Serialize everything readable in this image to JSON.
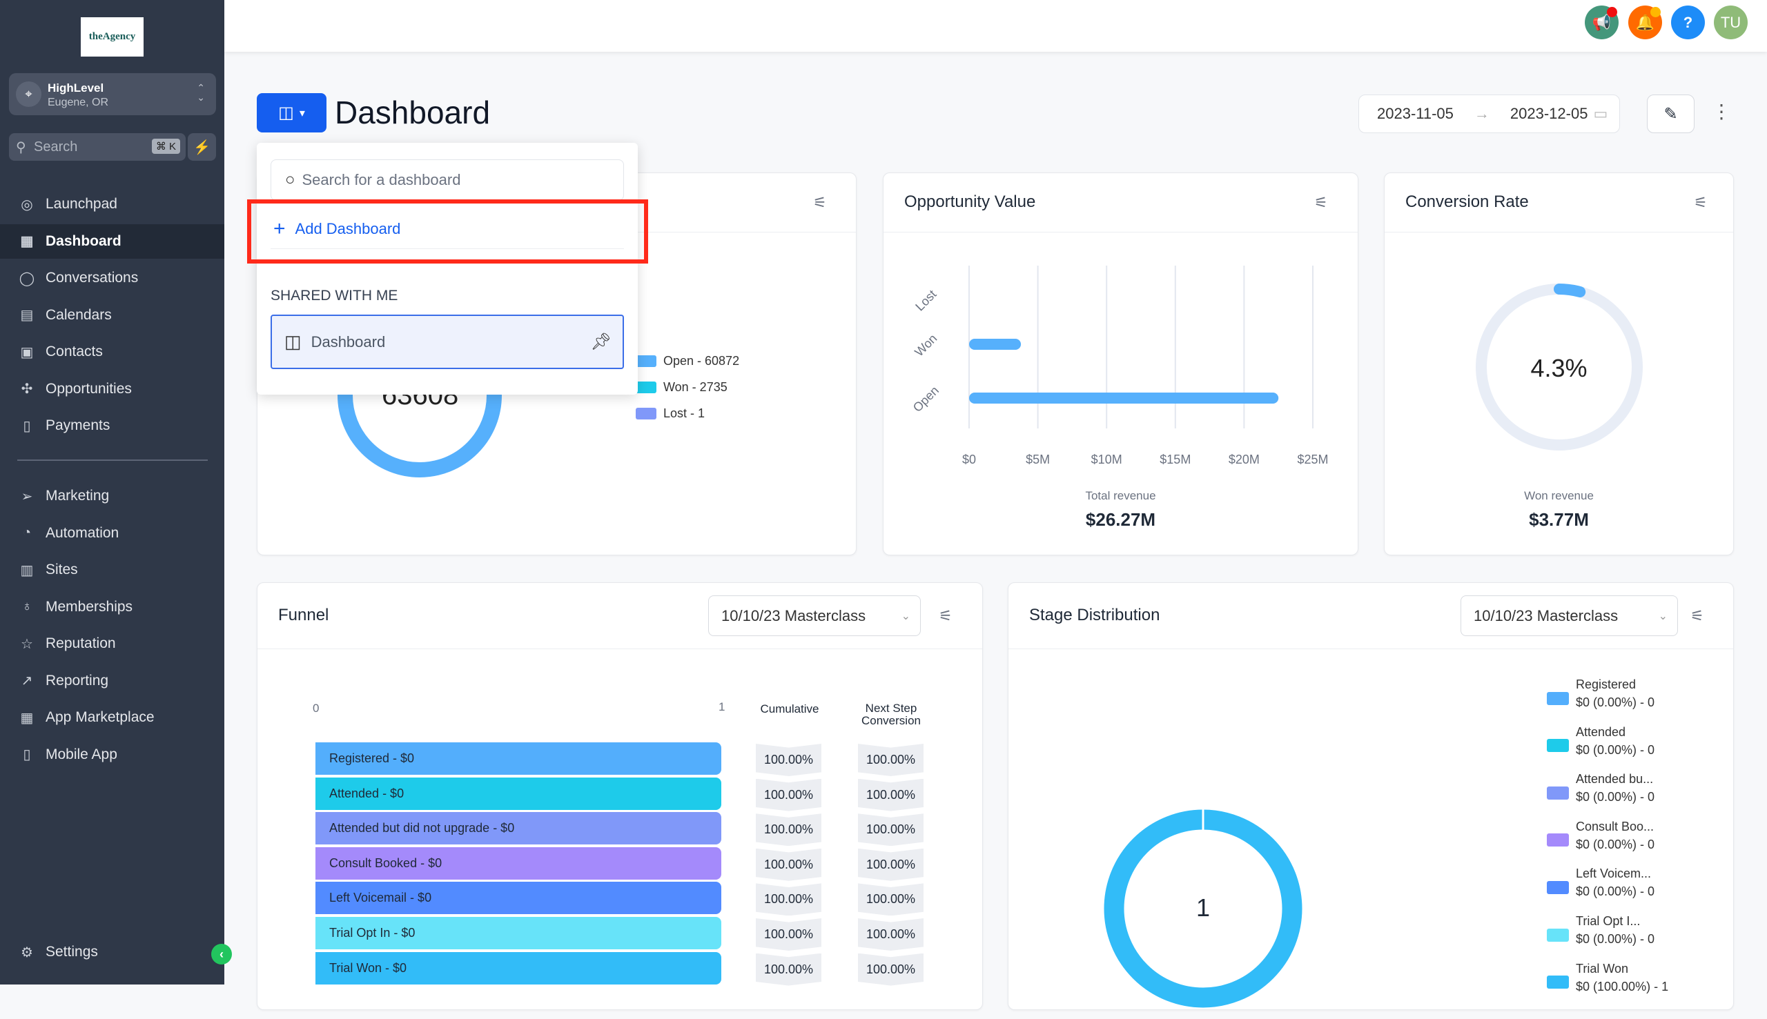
{
  "sidebar": {
    "logo_text": "theAgency",
    "location": {
      "name": "HighLevel",
      "city": "Eugene, OR"
    },
    "search": {
      "placeholder": "Search",
      "shortcut": "⌘ K"
    },
    "items": [
      {
        "label": "Launchpad",
        "icon": "rocket-icon",
        "glyph": "◎"
      },
      {
        "label": "Dashboard",
        "icon": "dashboard-icon",
        "glyph": "▦",
        "active": true
      },
      {
        "label": "Conversations",
        "icon": "chat-icon",
        "glyph": "◯"
      },
      {
        "label": "Calendars",
        "icon": "calendar-icon",
        "glyph": "▤"
      },
      {
        "label": "Contacts",
        "icon": "contacts-icon",
        "glyph": "▣"
      },
      {
        "label": "Opportunities",
        "icon": "opportunities-icon",
        "glyph": "✣"
      },
      {
        "label": "Payments",
        "icon": "payments-icon",
        "glyph": "▯"
      }
    ],
    "items2": [
      {
        "label": "Marketing",
        "icon": "send-icon",
        "glyph": "➢"
      },
      {
        "label": "Automation",
        "icon": "automation-icon",
        "glyph": "◔"
      },
      {
        "label": "Sites",
        "icon": "sites-icon",
        "glyph": "▥"
      },
      {
        "label": "Memberships",
        "icon": "memberships-icon",
        "glyph": "♁"
      },
      {
        "label": "Reputation",
        "icon": "star-icon",
        "glyph": "☆"
      },
      {
        "label": "Reporting",
        "icon": "trend-icon",
        "glyph": "↗"
      },
      {
        "label": "App Marketplace",
        "icon": "apps-icon",
        "glyph": "▦"
      },
      {
        "label": "Mobile App",
        "icon": "mobile-icon",
        "glyph": "▯"
      }
    ],
    "settings": "Settings"
  },
  "topbar": {
    "avatar": "TU",
    "colors": {
      "announce": "#44977b",
      "bell": "#ff6a00",
      "help": "#1d8cf8",
      "avatar": "#8fbb78"
    }
  },
  "header": {
    "title": "Dashboard",
    "date_from": "2023-11-05",
    "date_to": "2023-12-05"
  },
  "popup": {
    "search_placeholder": "Search for a dashboard",
    "add_label": "Add Dashboard",
    "section": "SHARED WITH ME",
    "items": [
      "Dashboard"
    ]
  },
  "card1": {
    "center_value": "63608",
    "legend": [
      {
        "label": "Open - 60872",
        "color": "#56b0fc"
      },
      {
        "label": "Won - 2735",
        "color": "#1ecbea"
      },
      {
        "label": "Lost - 1",
        "color": "#8098f9"
      }
    ]
  },
  "opp_value": {
    "title": "Opportunity Value",
    "summary_label": "Total revenue",
    "summary_value": "$26.27M"
  },
  "conversion": {
    "title": "Conversion Rate",
    "value": "4.3%",
    "percent": 4.3,
    "summary_label": "Won revenue",
    "summary_value": "$3.77M"
  },
  "funnel": {
    "title": "Funnel",
    "select": "10/10/23 Masterclass",
    "axis_min": "0",
    "axis_max": "1",
    "col_cumulative": "Cumulative",
    "col_next": "Next Step Conversion",
    "rows": [
      {
        "label": "Registered - $0",
        "color": "#53aefc",
        "cumulative": "100.00%",
        "next": "100.00%"
      },
      {
        "label": "Attended - $0",
        "color": "#1ecbea",
        "cumulative": "100.00%",
        "next": "100.00%"
      },
      {
        "label": "Attended but did not upgrade - $0",
        "color": "#8098f9",
        "cumulative": "100.00%",
        "next": "100.00%"
      },
      {
        "label": "Consult Booked - $0",
        "color": "#a48afb",
        "cumulative": "100.00%",
        "next": "100.00%"
      },
      {
        "label": "Left Voicemail - $0",
        "color": "#528bff",
        "cumulative": "100.00%",
        "next": "100.00%"
      },
      {
        "label": "Trial Opt In - $0",
        "color": "#67e3f9",
        "cumulative": "100.00%",
        "next": "100.00%"
      },
      {
        "label": "Trial Won - $0",
        "color": "#32bcf8",
        "cumulative": "100.00%",
        "next": "100.00%"
      }
    ]
  },
  "stage": {
    "title": "Stage Distribution",
    "select": "10/10/23 Masterclass",
    "center_value": "1",
    "legend": [
      {
        "name": "Registered",
        "value": "$0 (0.00%) - 0",
        "color": "#53aefc"
      },
      {
        "name": "Attended",
        "value": "$0 (0.00%) - 0",
        "color": "#1ecbea"
      },
      {
        "name": "Attended bu...",
        "value": "$0 (0.00%) - 0",
        "color": "#8098f9"
      },
      {
        "name": "Consult Boo...",
        "value": "$0 (0.00%) - 0",
        "color": "#a48afb"
      },
      {
        "name": "Left Voicem...",
        "value": "$0 (0.00%) - 0",
        "color": "#528bff"
      },
      {
        "name": "Trial Opt I...",
        "value": "$0 (0.00%) - 0",
        "color": "#67e3f9"
      },
      {
        "name": "Trial Won",
        "value": "$0 (100.00%) - 1",
        "color": "#32bcf8"
      }
    ]
  },
  "chart_data": [
    {
      "type": "bar",
      "orientation": "horizontal",
      "title": "Opportunity Value",
      "categories": [
        "Lost",
        "Won",
        "Open"
      ],
      "values": [
        0,
        3770000,
        22500000
      ],
      "xlim": [
        0,
        25000000
      ],
      "x_ticks": [
        "$0",
        "$5M",
        "$10M",
        "$15M",
        "$20M",
        "$25M"
      ],
      "grid": true,
      "color": "#56b0fc"
    },
    {
      "type": "pie",
      "title": "Conversion Rate",
      "values": [
        4.3,
        95.7
      ],
      "color": "#56b0fc"
    },
    {
      "type": "pie",
      "title": "Stage Distribution",
      "categories": [
        "Registered",
        "Attended",
        "Attended but did not upgrade",
        "Consult Booked",
        "Left Voicemail",
        "Trial Opt In",
        "Trial Won"
      ],
      "values": [
        0,
        0,
        0,
        0,
        0,
        0,
        1
      ]
    }
  ]
}
